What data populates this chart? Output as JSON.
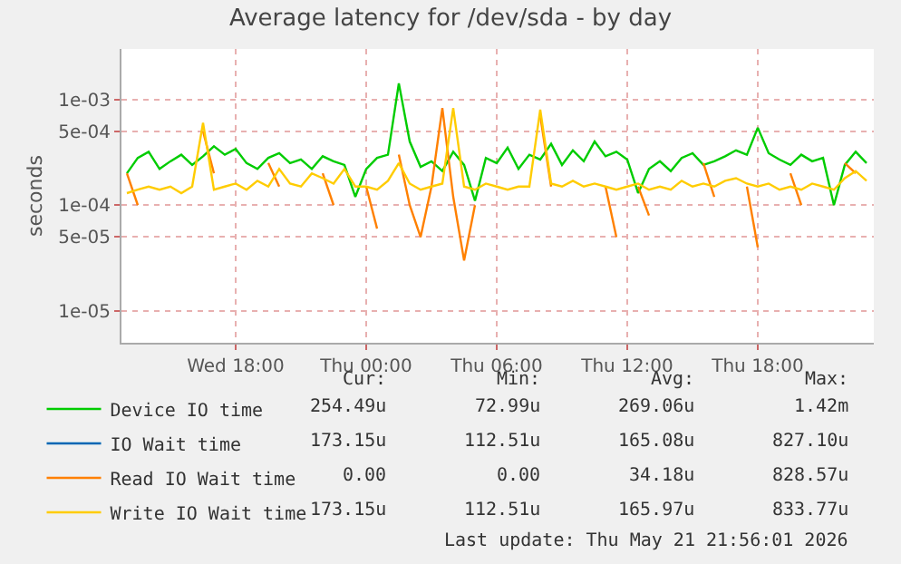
{
  "chart_data": {
    "type": "line",
    "title": "Average latency for /dev/sda - by day",
    "ylabel": "seconds",
    "log": "y",
    "grid": true,
    "legend": "bottom left",
    "marker": "none",
    "line_style": "solid",
    "xlim": [
      "2026-05-20T12:45",
      "2026-05-21T23:20"
    ],
    "xticks": [
      {
        "value": "2026-05-20T18:00",
        "label": "Wed 18:00"
      },
      {
        "value": "2026-05-21T00:00",
        "label": "Thu 00:00"
      },
      {
        "value": "2026-05-21T06:00",
        "label": "Thu 06:00"
      },
      {
        "value": "2026-05-21T12:00",
        "label": "Thu 12:00"
      },
      {
        "value": "2026-05-21T18:00",
        "label": "Thu 18:00"
      }
    ],
    "ylim": [
      5e-06,
      0.003
    ],
    "yticks": [
      {
        "value": 1e-05,
        "label": "1e-05"
      },
      {
        "value": 5e-05,
        "label": "5e-05"
      },
      {
        "value": 0.0001,
        "label": "1e-04"
      },
      {
        "value": 0.0005,
        "label": "5e-04"
      },
      {
        "value": 0.001,
        "label": "1e-03"
      }
    ],
    "x": [
      "2026-05-20T13:00",
      "2026-05-20T13:30",
      "2026-05-20T14:00",
      "2026-05-20T14:30",
      "2026-05-20T15:00",
      "2026-05-20T15:30",
      "2026-05-20T16:00",
      "2026-05-20T16:30",
      "2026-05-20T17:00",
      "2026-05-20T17:30",
      "2026-05-20T18:00",
      "2026-05-20T18:30",
      "2026-05-20T19:00",
      "2026-05-20T19:30",
      "2026-05-20T20:00",
      "2026-05-20T20:30",
      "2026-05-20T21:00",
      "2026-05-20T21:30",
      "2026-05-20T22:00",
      "2026-05-20T22:30",
      "2026-05-20T23:00",
      "2026-05-20T23:30",
      "2026-05-21T00:00",
      "2026-05-21T00:30",
      "2026-05-21T01:00",
      "2026-05-21T01:30",
      "2026-05-21T02:00",
      "2026-05-21T02:30",
      "2026-05-21T03:00",
      "2026-05-21T03:30",
      "2026-05-21T04:00",
      "2026-05-21T04:30",
      "2026-05-21T05:00",
      "2026-05-21T05:30",
      "2026-05-21T06:00",
      "2026-05-21T06:30",
      "2026-05-21T07:00",
      "2026-05-21T07:30",
      "2026-05-21T08:00",
      "2026-05-21T08:30",
      "2026-05-21T09:00",
      "2026-05-21T09:30",
      "2026-05-21T10:00",
      "2026-05-21T10:30",
      "2026-05-21T11:00",
      "2026-05-21T11:30",
      "2026-05-21T12:00",
      "2026-05-21T12:30",
      "2026-05-21T13:00",
      "2026-05-21T13:30",
      "2026-05-21T14:00",
      "2026-05-21T14:30",
      "2026-05-21T15:00",
      "2026-05-21T15:30",
      "2026-05-21T16:00",
      "2026-05-21T16:30",
      "2026-05-21T17:00",
      "2026-05-21T17:30",
      "2026-05-21T18:00",
      "2026-05-21T18:30",
      "2026-05-21T19:00",
      "2026-05-21T19:30",
      "2026-05-21T20:00",
      "2026-05-21T20:30",
      "2026-05-21T21:00",
      "2026-05-21T21:30",
      "2026-05-21T22:00",
      "2026-05-21T22:30",
      "2026-05-21T23:00"
    ],
    "series": [
      {
        "name": "Device IO time",
        "color": "#00cc00",
        "values": [
          0.0002,
          0.00028,
          0.00032,
          0.00022,
          0.00026,
          0.0003,
          0.00024,
          0.00029,
          0.00036,
          0.0003,
          0.00034,
          0.00025,
          0.00022,
          0.00028,
          0.00031,
          0.00025,
          0.00027,
          0.00022,
          0.00029,
          0.00026,
          0.00024,
          0.00012,
          0.00022,
          0.00028,
          0.0003,
          0.00142,
          0.0004,
          0.00023,
          0.00026,
          0.00021,
          0.00032,
          0.00024,
          0.00011,
          0.00028,
          0.00025,
          0.00035,
          0.00022,
          0.0003,
          0.00027,
          0.00038,
          0.00024,
          0.00033,
          0.00026,
          0.0004,
          0.00029,
          0.00032,
          0.00027,
          0.00013,
          0.00022,
          0.00026,
          0.00021,
          0.00028,
          0.00031,
          0.00024,
          0.00026,
          0.00029,
          0.00033,
          0.0003,
          0.00054,
          0.00031,
          0.00027,
          0.00024,
          0.0003,
          0.00026,
          0.00028,
          0.0001,
          0.00024,
          0.00032,
          0.00025
        ]
      },
      {
        "name": "IO Wait time",
        "color": "#0066b3",
        "values": [
          null,
          null,
          null,
          null,
          null,
          null,
          null,
          null,
          null,
          null,
          null,
          null,
          null,
          null,
          null,
          null,
          null,
          null,
          null,
          null,
          null,
          null,
          null,
          null,
          null,
          null,
          null,
          null,
          null,
          null,
          null,
          null,
          null,
          null,
          null,
          null,
          null,
          null,
          null,
          null,
          null,
          null,
          null,
          null,
          null,
          null,
          null,
          null,
          null,
          null,
          null,
          null,
          null,
          null,
          null,
          null,
          null,
          null,
          null,
          null,
          null,
          null,
          null,
          null,
          null,
          null,
          null,
          null,
          null
        ]
      },
      {
        "name": "Read IO Wait time",
        "color": "#ff8000",
        "values": [
          0.0002,
          0.0001,
          null,
          null,
          null,
          null,
          null,
          0.0005,
          0.0002,
          null,
          null,
          null,
          null,
          0.00025,
          0.00015,
          null,
          null,
          null,
          0.0002,
          0.0001,
          null,
          null,
          0.00015,
          6e-05,
          null,
          0.0003,
          0.0001,
          5e-05,
          0.00015,
          0.00083,
          0.00012,
          3e-05,
          0.0001,
          null,
          null,
          null,
          null,
          null,
          0.0007,
          0.00015,
          null,
          null,
          null,
          null,
          0.00015,
          5e-05,
          null,
          0.00015,
          8e-05,
          null,
          null,
          null,
          null,
          0.00025,
          0.00012,
          null,
          null,
          0.00015,
          4e-05,
          null,
          null,
          0.0002,
          0.0001,
          null,
          null,
          null,
          0.00025,
          0.0002,
          null
        ]
      },
      {
        "name": "Write IO Wait time",
        "color": "#ffcc00",
        "values": [
          0.00013,
          0.00014,
          0.00015,
          0.00014,
          0.00015,
          0.00013,
          0.00015,
          0.0006,
          0.00014,
          0.00015,
          0.00016,
          0.00014,
          0.00017,
          0.00015,
          0.00022,
          0.00016,
          0.00015,
          0.0002,
          0.00018,
          0.00016,
          0.00022,
          0.00015,
          0.00015,
          0.00014,
          0.00017,
          0.00025,
          0.00016,
          0.00014,
          0.00015,
          0.00016,
          0.00083,
          0.00015,
          0.00014,
          0.00016,
          0.00015,
          0.00014,
          0.00015,
          0.00015,
          0.0008,
          0.00016,
          0.00015,
          0.00017,
          0.00015,
          0.00016,
          0.00015,
          0.00014,
          0.00015,
          0.00016,
          0.00014,
          0.00015,
          0.00014,
          0.00017,
          0.00015,
          0.00016,
          0.00015,
          0.00017,
          0.00018,
          0.00016,
          0.00015,
          0.00016,
          0.00014,
          0.00015,
          0.00014,
          0.00016,
          0.00015,
          0.00014,
          0.00018,
          0.00021,
          0.00017
        ]
      }
    ],
    "annotations": [
      "Cur:",
      "Min:",
      "Avg:",
      "Max:",
      "254.49u",
      "72.99u",
      "269.06u",
      "1.42m",
      "173.15u",
      "112.51u",
      "165.08u",
      "827.10u",
      "0.00",
      "0.00",
      "34.18u",
      "828.57u",
      "173.15u",
      "112.51u",
      "165.97u",
      "833.77u",
      "Last update: Thu May 21 21:56:01 2026"
    ]
  }
}
